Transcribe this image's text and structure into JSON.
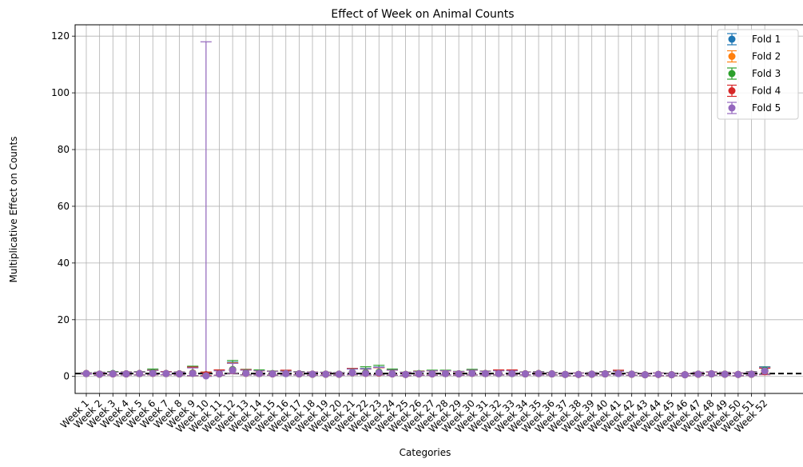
{
  "chart_data": {
    "type": "scatter",
    "title": "Effect of Week on Animal Counts",
    "xlabel": "Categories",
    "ylabel": "Multiplicative Effect on Counts",
    "ylim": [
      -6,
      124
    ],
    "yticks": [
      0,
      20,
      40,
      60,
      80,
      100,
      120
    ],
    "grid": true,
    "legend_position": "top-right",
    "reference_line": {
      "y": 1,
      "style": "dashed",
      "color": "#000000"
    },
    "categories": [
      "Week 1",
      "Week 2",
      "Week 3",
      "Week 4",
      "Week 5",
      "Week 6",
      "Week 7",
      "Week 8",
      "Week 9",
      "Week 10",
      "Week 11",
      "Week 12",
      "Week 13",
      "Week 14",
      "Week 15",
      "Week 16",
      "Week 17",
      "Week 18",
      "Week 19",
      "Week 20",
      "Week 21",
      "Week 22",
      "Week 23",
      "Week 24",
      "Week 25",
      "Week 26",
      "Week 27",
      "Week 28",
      "Week 29",
      "Week 30",
      "Week 31",
      "Week 32",
      "Week 33",
      "Week 34",
      "Week 35",
      "Week 36",
      "Week 37",
      "Week 38",
      "Week 39",
      "Week 40",
      "Week 41",
      "Week 42",
      "Week 43",
      "Week 44",
      "Week 45",
      "Week 46",
      "Week 47",
      "Week 48",
      "Week 49",
      "Week 50",
      "Week 51",
      "Week 52"
    ],
    "series": [
      {
        "name": "Fold 1",
        "color": "#1f77b4",
        "values": [
          1,
          0.8,
          1,
          0.9,
          1,
          1.2,
          1,
          0.9,
          1.1,
          0.6,
          0.9,
          2.4,
          1.2,
          1,
          0.9,
          1,
          0.9,
          0.8,
          0.8,
          0.8,
          1.3,
          1.2,
          1.3,
          0.9,
          0.7,
          0.9,
          0.9,
          1,
          0.9,
          1.1,
          1,
          1,
          1,
          0.9,
          1,
          0.9,
          0.7,
          0.7,
          0.8,
          0.9,
          1,
          0.8,
          0.6,
          0.7,
          0.6,
          0.6,
          0.8,
          0.9,
          0.8,
          0.7,
          0.8,
          2.2
        ],
        "upper": [
          1.2,
          1.4,
          1.5,
          1.5,
          1.5,
          2.2,
          1.6,
          1.5,
          3.2,
          1.4,
          2,
          5,
          2.3,
          2,
          1.8,
          1.8,
          1.6,
          1.5,
          1.4,
          1.3,
          2.6,
          2.8,
          3.3,
          2.3,
          1.4,
          1.7,
          2,
          2,
          1.7,
          2.2,
          1.8,
          2,
          2,
          1.5,
          1.6,
          1.3,
          1.2,
          1.2,
          1.3,
          1.6,
          1.8,
          1.3,
          1.1,
          1.2,
          1,
          1,
          1.4,
          1.6,
          1.4,
          1.2,
          1.6,
          3.4
        ],
        "lower": [
          0.8,
          0.4,
          0.5,
          0.5,
          0.5,
          0.6,
          0.6,
          0.5,
          0.3,
          0.2,
          0.4,
          1.2,
          0.6,
          0.5,
          0.4,
          0.5,
          0.5,
          0.4,
          0.4,
          0.4,
          0.6,
          0.5,
          0.5,
          0.4,
          0.3,
          0.4,
          0.4,
          0.5,
          0.4,
          0.5,
          0.5,
          0.5,
          0.5,
          0.5,
          0.5,
          0.5,
          0.3,
          0.3,
          0.4,
          0.5,
          0.5,
          0.4,
          0.3,
          0.3,
          0.3,
          0.3,
          0.4,
          0.4,
          0.4,
          0.3,
          0.4,
          0.8
        ]
      },
      {
        "name": "Fold 2",
        "color": "#ff7f0e",
        "values": [
          1,
          0.8,
          0.9,
          0.9,
          1,
          1.1,
          1,
          0.9,
          1.2,
          0.6,
          0.9,
          2.3,
          1.1,
          1,
          0.9,
          1.1,
          0.9,
          0.8,
          0.8,
          0.8,
          1.3,
          1.1,
          1.2,
          0.9,
          0.7,
          0.9,
          0.9,
          1,
          0.9,
          1.1,
          1,
          1,
          1,
          0.9,
          1,
          0.9,
          0.7,
          0.7,
          0.8,
          0.9,
          1.1,
          0.8,
          0.6,
          0.7,
          0.6,
          0.6,
          0.8,
          0.9,
          0.8,
          0.7,
          0.8,
          1.9
        ],
        "upper": [
          1.2,
          1.4,
          1.5,
          1.5,
          1.6,
          2.1,
          1.6,
          1.5,
          3.4,
          1.5,
          2.1,
          4.8,
          2.2,
          2,
          1.8,
          2,
          1.6,
          1.5,
          1.4,
          1.3,
          2.7,
          2.6,
          3.1,
          2.2,
          1.4,
          1.8,
          2,
          2,
          1.7,
          2.2,
          1.8,
          2.1,
          2.1,
          1.5,
          1.6,
          1.3,
          1.2,
          1.2,
          1.3,
          1.6,
          1.9,
          1.3,
          1.1,
          1.2,
          1,
          1,
          1.4,
          1.5,
          1.4,
          1.2,
          1.6,
          3.1
        ],
        "lower": [
          0.8,
          0.4,
          0.5,
          0.5,
          0.5,
          0.6,
          0.6,
          0.5,
          0.3,
          0.2,
          0.4,
          1.1,
          0.5,
          0.5,
          0.4,
          0.5,
          0.5,
          0.4,
          0.4,
          0.4,
          0.6,
          0.5,
          0.5,
          0.4,
          0.3,
          0.4,
          0.4,
          0.5,
          0.4,
          0.5,
          0.5,
          0.5,
          0.5,
          0.5,
          0.5,
          0.5,
          0.3,
          0.3,
          0.4,
          0.5,
          0.5,
          0.4,
          0.3,
          0.3,
          0.3,
          0.3,
          0.4,
          0.4,
          0.4,
          0.3,
          0.4,
          0.7
        ]
      },
      {
        "name": "Fold 3",
        "color": "#2ca02c",
        "values": [
          1,
          0.8,
          1,
          0.9,
          1,
          1.3,
          1,
          0.9,
          1.2,
          0.6,
          1,
          2.4,
          1.2,
          1.1,
          1,
          1.1,
          0.9,
          0.8,
          0.8,
          0.8,
          1.4,
          1.3,
          1.5,
          1,
          0.7,
          1,
          1,
          1,
          0.9,
          1.2,
          1,
          1,
          1,
          0.9,
          1,
          0.9,
          0.7,
          0.7,
          0.8,
          0.9,
          1.1,
          0.8,
          0.6,
          0.7,
          0.6,
          0.6,
          0.8,
          0.9,
          0.8,
          0.7,
          0.8,
          2.1
        ],
        "upper": [
          1.3,
          1.5,
          1.7,
          1.6,
          1.7,
          2.6,
          1.7,
          1.6,
          3.6,
          1.5,
          2.3,
          5.6,
          2.5,
          2.3,
          1.9,
          2,
          1.7,
          1.5,
          1.5,
          1.4,
          2.8,
          3.4,
          3.9,
          2.6,
          1.5,
          1.9,
          2.2,
          2.2,
          1.8,
          2.5,
          1.9,
          2.1,
          2.1,
          1.6,
          1.7,
          1.4,
          1.2,
          1.2,
          1.4,
          1.7,
          2,
          1.4,
          1.1,
          1.2,
          1.1,
          1,
          1.5,
          1.6,
          1.5,
          1.2,
          1.7,
          3.3
        ],
        "lower": [
          0.8,
          0.4,
          0.5,
          0.5,
          0.5,
          0.6,
          0.6,
          0.5,
          0.3,
          0.2,
          0.4,
          1.1,
          0.6,
          0.5,
          0.5,
          0.5,
          0.5,
          0.4,
          0.4,
          0.4,
          0.6,
          0.5,
          0.6,
          0.4,
          0.3,
          0.4,
          0.4,
          0.5,
          0.4,
          0.5,
          0.5,
          0.5,
          0.5,
          0.5,
          0.5,
          0.5,
          0.3,
          0.3,
          0.4,
          0.5,
          0.5,
          0.4,
          0.3,
          0.3,
          0.3,
          0.3,
          0.4,
          0.4,
          0.4,
          0.3,
          0.4,
          0.8
        ]
      },
      {
        "name": "Fold 4",
        "color": "#d62728",
        "values": [
          1,
          0.8,
          0.9,
          0.9,
          1,
          1.1,
          1,
          0.9,
          1.1,
          0.6,
          1,
          2.2,
          1.1,
          1,
          0.9,
          1.1,
          0.9,
          0.8,
          0.8,
          0.8,
          1.3,
          1.1,
          1.2,
          0.9,
          0.7,
          0.9,
          0.9,
          1,
          0.9,
          1.1,
          1,
          1.1,
          1.1,
          0.9,
          1,
          0.9,
          0.7,
          0.7,
          0.8,
          0.9,
          1.1,
          0.8,
          0.6,
          0.7,
          0.6,
          0.6,
          0.8,
          0.9,
          0.8,
          0.7,
          0.8,
          1.7
        ],
        "upper": [
          1.2,
          1.4,
          1.5,
          1.5,
          1.6,
          2.2,
          1.7,
          1.5,
          3.3,
          1.5,
          2.3,
          4.6,
          2.4,
          2,
          1.8,
          2.2,
          1.6,
          1.5,
          1.4,
          1.3,
          2.8,
          2.6,
          3.1,
          2.2,
          1.4,
          1.8,
          2,
          2,
          1.7,
          2.2,
          1.8,
          2.3,
          2.3,
          1.5,
          1.6,
          1.3,
          1.2,
          1.2,
          1.3,
          1.6,
          2.2,
          1.3,
          1.1,
          1.2,
          1,
          1,
          1.4,
          1.6,
          1.4,
          1.2,
          1.6,
          2.9
        ],
        "lower": [
          0.8,
          0.4,
          0.5,
          0.5,
          0.5,
          0.6,
          0.6,
          0.5,
          0.3,
          0.2,
          0.4,
          1,
          0.5,
          0.5,
          0.4,
          0.5,
          0.5,
          0.4,
          0.4,
          0.4,
          0.6,
          0.5,
          0.5,
          0.4,
          0.3,
          0.4,
          0.4,
          0.5,
          0.4,
          0.5,
          0.5,
          0.5,
          0.5,
          0.5,
          0.5,
          0.5,
          0.3,
          0.3,
          0.4,
          0.5,
          0.5,
          0.4,
          0.3,
          0.3,
          0.3,
          0.3,
          0.4,
          0.4,
          0.4,
          0.3,
          0.4,
          0.6
        ]
      },
      {
        "name": "Fold 5",
        "color": "#9467bd",
        "values": [
          1,
          0.8,
          0.9,
          0.9,
          1,
          1.1,
          1,
          0.9,
          1.1,
          0.2,
          0.9,
          2.2,
          1.1,
          1,
          0.9,
          1,
          0.9,
          0.8,
          0.8,
          0.8,
          1.3,
          1.1,
          1.3,
          0.9,
          0.7,
          0.9,
          0.9,
          1,
          0.9,
          1.1,
          1,
          1,
          1,
          0.9,
          1,
          0.9,
          0.7,
          0.7,
          0.8,
          0.9,
          1,
          0.8,
          0.6,
          0.7,
          0.6,
          0.6,
          0.8,
          0.9,
          0.8,
          0.7,
          0.8,
          1.9
        ],
        "upper": [
          1.2,
          1.4,
          1.5,
          1.5,
          1.6,
          2.1,
          1.6,
          1.5,
          3,
          118,
          2,
          4.6,
          2.2,
          2,
          1.8,
          1.8,
          1.6,
          1.5,
          1.4,
          1.3,
          2.6,
          2.6,
          3.2,
          2.2,
          1.4,
          1.7,
          2,
          2,
          1.7,
          2.2,
          1.8,
          2,
          2,
          1.5,
          1.6,
          1.3,
          1.2,
          1.2,
          1.3,
          1.6,
          1.8,
          1.3,
          1.1,
          1.2,
          1,
          1,
          1.4,
          1.6,
          1.4,
          1.2,
          1.6,
          3.2
        ],
        "lower": [
          0.8,
          0.4,
          0.5,
          0.5,
          0.5,
          0.6,
          0.6,
          0.5,
          0.3,
          0.01,
          0.4,
          1,
          0.5,
          0.5,
          0.4,
          0.5,
          0.5,
          0.4,
          0.4,
          0.4,
          0.6,
          0.5,
          0.5,
          0.4,
          0.3,
          0.4,
          0.4,
          0.5,
          0.4,
          0.5,
          0.5,
          0.5,
          0.5,
          0.5,
          0.5,
          0.5,
          0.3,
          0.3,
          0.4,
          0.5,
          0.5,
          0.4,
          0.3,
          0.3,
          0.3,
          0.3,
          0.4,
          0.4,
          0.4,
          0.3,
          0.4,
          0.7
        ]
      }
    ]
  }
}
